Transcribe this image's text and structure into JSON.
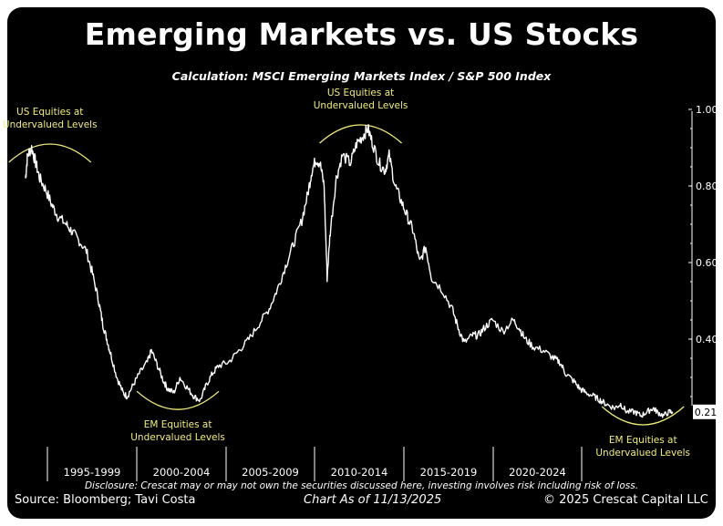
{
  "header": {
    "title": "Emerging Markets vs. US Stocks",
    "subtitle": "Calculation: MSCI Emerging Markets Index / S&P 500 Index"
  },
  "footer": {
    "source": "Source: Bloomberg; Tavi Costa",
    "chart_as_of": "Chart As of 11/13/2025",
    "copyright": "© 2025 Crescat Capital LLC",
    "disclosure": "Disclosure: Crescat may or may not own the securities discussed here, investing involves risk including risk of loss."
  },
  "colors": {
    "background": "#000000",
    "line": "#ffffff",
    "annotation": "#f2ee7a"
  },
  "chart_data": {
    "type": "line",
    "title": "Emerging Markets vs. US Stocks",
    "subtitle": "Calculation: MSCI Emerging Markets Index / S&P 500 Index",
    "xlabel": "",
    "ylabel": "",
    "x_ticks": [
      "1995-1999",
      "2000-2004",
      "2005-2009",
      "2010-2014",
      "2015-2019",
      "2020-2024"
    ],
    "y_ticks": [
      "1.00",
      "0.80",
      "0.60",
      "0.40"
    ],
    "ylim": [
      0.1,
      1.0
    ],
    "xlim": [
      1994.0,
      2026.5
    ],
    "grid": false,
    "last_value_label": "0.21",
    "series": [
      {
        "name": "",
        "x": [
          1994.0,
          1994.1,
          1994.3,
          1994.5,
          1994.7,
          1995.0,
          1995.3,
          1995.6,
          1996.0,
          1996.3,
          1996.6,
          1997.0,
          1997.3,
          1997.6,
          1997.8,
          1998.0,
          1998.2,
          1998.5,
          1998.8,
          1999.0,
          1999.3,
          1999.6,
          2000.0,
          2000.2,
          2000.5,
          2000.8,
          2001.0,
          2001.3,
          2001.6,
          2002.0,
          2002.3,
          2002.6,
          2002.9,
          2003.2,
          2003.5,
          2004.0,
          2004.5,
          2005.0,
          2005.5,
          2006.0,
          2006.4,
          2006.8,
          2007.2,
          2007.6,
          2007.9,
          2008.1,
          2008.3,
          2008.5,
          2008.7,
          2008.85,
          2009.0,
          2009.3,
          2009.6,
          2010.0,
          2010.3,
          2010.6,
          2010.85,
          2011.1,
          2011.4,
          2011.7,
          2011.9,
          2012.2,
          2012.5,
          2012.8,
          2013.1,
          2013.4,
          2013.7,
          2014.0,
          2014.5,
          2015.0,
          2015.3,
          2015.6,
          2016.0,
          2016.3,
          2016.6,
          2017.0,
          2017.5,
          2018.0,
          2018.3,
          2018.6,
          2019.0,
          2019.5,
          2020.0,
          2020.3,
          2020.6,
          2021.0,
          2021.3,
          2021.6,
          2022.0,
          2022.3,
          2022.6,
          2023.0,
          2023.3,
          2023.6,
          2024.0,
          2024.3,
          2024.6,
          2024.9,
          2025.1,
          2025.4,
          2025.7,
          2025.87
        ],
        "values": [
          0.82,
          0.88,
          0.9,
          0.86,
          0.82,
          0.79,
          0.75,
          0.72,
          0.7,
          0.68,
          0.66,
          0.63,
          0.57,
          0.5,
          0.44,
          0.4,
          0.36,
          0.3,
          0.26,
          0.25,
          0.28,
          0.31,
          0.34,
          0.37,
          0.33,
          0.29,
          0.27,
          0.26,
          0.3,
          0.27,
          0.25,
          0.24,
          0.28,
          0.31,
          0.33,
          0.34,
          0.37,
          0.4,
          0.44,
          0.48,
          0.53,
          0.59,
          0.65,
          0.71,
          0.78,
          0.84,
          0.87,
          0.86,
          0.8,
          0.56,
          0.68,
          0.82,
          0.88,
          0.86,
          0.91,
          0.93,
          0.95,
          0.91,
          0.86,
          0.84,
          0.88,
          0.8,
          0.76,
          0.72,
          0.68,
          0.6,
          0.64,
          0.56,
          0.53,
          0.48,
          0.43,
          0.39,
          0.41,
          0.41,
          0.43,
          0.45,
          0.42,
          0.45,
          0.43,
          0.4,
          0.38,
          0.37,
          0.35,
          0.34,
          0.31,
          0.29,
          0.27,
          0.26,
          0.25,
          0.24,
          0.23,
          0.22,
          0.23,
          0.21,
          0.21,
          0.2,
          0.21,
          0.22,
          0.21,
          0.2,
          0.21,
          0.21
        ]
      }
    ],
    "annotations": [
      {
        "text": [
          "US Equities at",
          "Undervalued Levels"
        ],
        "x": 1995.2,
        "y": 0.9,
        "arc": "peak"
      },
      {
        "text": [
          "US Equities at",
          "Undervalued Levels"
        ],
        "x": 2010.5,
        "y": 0.95,
        "arc": "peak"
      },
      {
        "text": [
          "EM Equities at",
          "Undervalued Levels"
        ],
        "x": 2001.5,
        "y": 0.24,
        "arc": "trough"
      },
      {
        "text": [
          "EM Equities at",
          "Undervalued Levels"
        ],
        "x": 2024.4,
        "y": 0.2,
        "arc": "trough"
      }
    ]
  }
}
